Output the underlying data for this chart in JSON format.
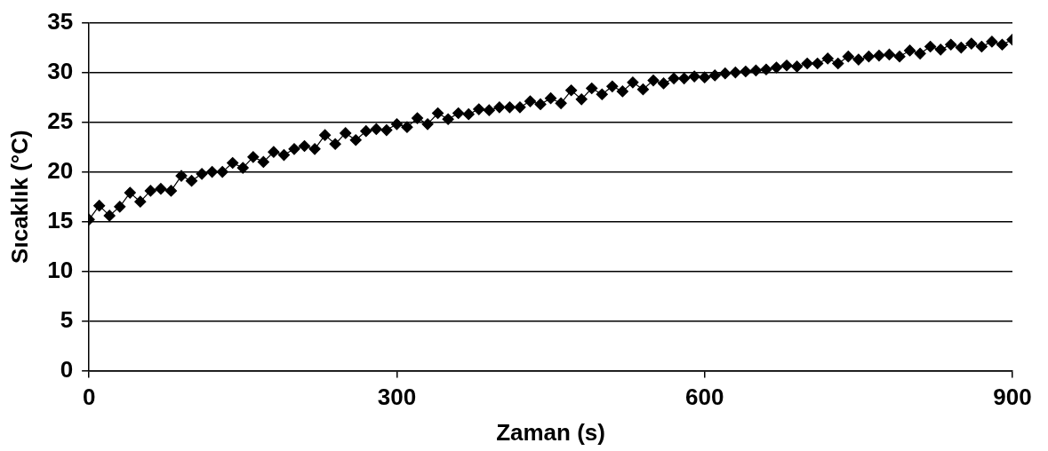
{
  "chart_data": {
    "type": "line",
    "xlabel": "Zaman (s)",
    "ylabel": "Sıcaklık (°C)",
    "x": [
      0,
      10,
      20,
      30,
      40,
      50,
      60,
      70,
      80,
      90,
      100,
      110,
      120,
      130,
      140,
      150,
      160,
      170,
      180,
      190,
      200,
      210,
      220,
      230,
      240,
      250,
      260,
      270,
      280,
      290,
      300,
      310,
      320,
      330,
      340,
      350,
      360,
      370,
      380,
      390,
      400,
      410,
      420,
      430,
      440,
      450,
      460,
      470,
      480,
      490,
      500,
      510,
      520,
      530,
      540,
      550,
      560,
      570,
      580,
      590,
      600,
      610,
      620,
      630,
      640,
      650,
      660,
      670,
      680,
      690,
      700,
      710,
      720,
      730,
      740,
      750,
      760,
      770,
      780,
      790,
      800,
      810,
      820,
      830,
      840,
      850,
      860,
      870,
      880,
      890,
      900
    ],
    "series": [
      {
        "color": "#000000",
        "values": [
          15.2,
          16.6,
          15.6,
          16.5,
          17.9,
          17.0,
          18.1,
          18.3,
          18.1,
          19.6,
          19.1,
          19.8,
          20.0,
          20.0,
          20.9,
          20.4,
          21.5,
          21.0,
          22.0,
          21.7,
          22.3,
          22.6,
          22.3,
          23.7,
          22.8,
          23.9,
          23.2,
          24.1,
          24.3,
          24.2,
          24.8,
          24.5,
          25.4,
          24.8,
          25.9,
          25.3,
          25.9,
          25.8,
          26.3,
          26.2,
          26.5,
          26.5,
          26.5,
          27.1,
          26.8,
          27.4,
          26.9,
          28.2,
          27.3,
          28.4,
          27.8,
          28.6,
          28.1,
          29.0,
          28.3,
          29.2,
          28.9,
          29.4,
          29.4,
          29.6,
          29.5,
          29.7,
          29.9,
          30.0,
          30.1,
          30.2,
          30.3,
          30.5,
          30.7,
          30.6,
          30.9,
          30.9,
          31.4,
          30.9,
          31.6,
          31.3,
          31.6,
          31.7,
          31.8,
          31.6,
          32.2,
          31.9,
          32.6,
          32.3,
          32.8,
          32.5,
          32.9,
          32.6,
          33.1,
          32.8,
          33.3
        ]
      }
    ],
    "xlim": [
      0,
      900
    ],
    "xticks": [
      0,
      300,
      600,
      900
    ],
    "ylim": [
      0,
      35
    ],
    "yticks": [
      0,
      5,
      10,
      15,
      20,
      25,
      30,
      35
    ],
    "grid": "y",
    "legend": false,
    "marker": "diamond",
    "line_style": "solid"
  }
}
